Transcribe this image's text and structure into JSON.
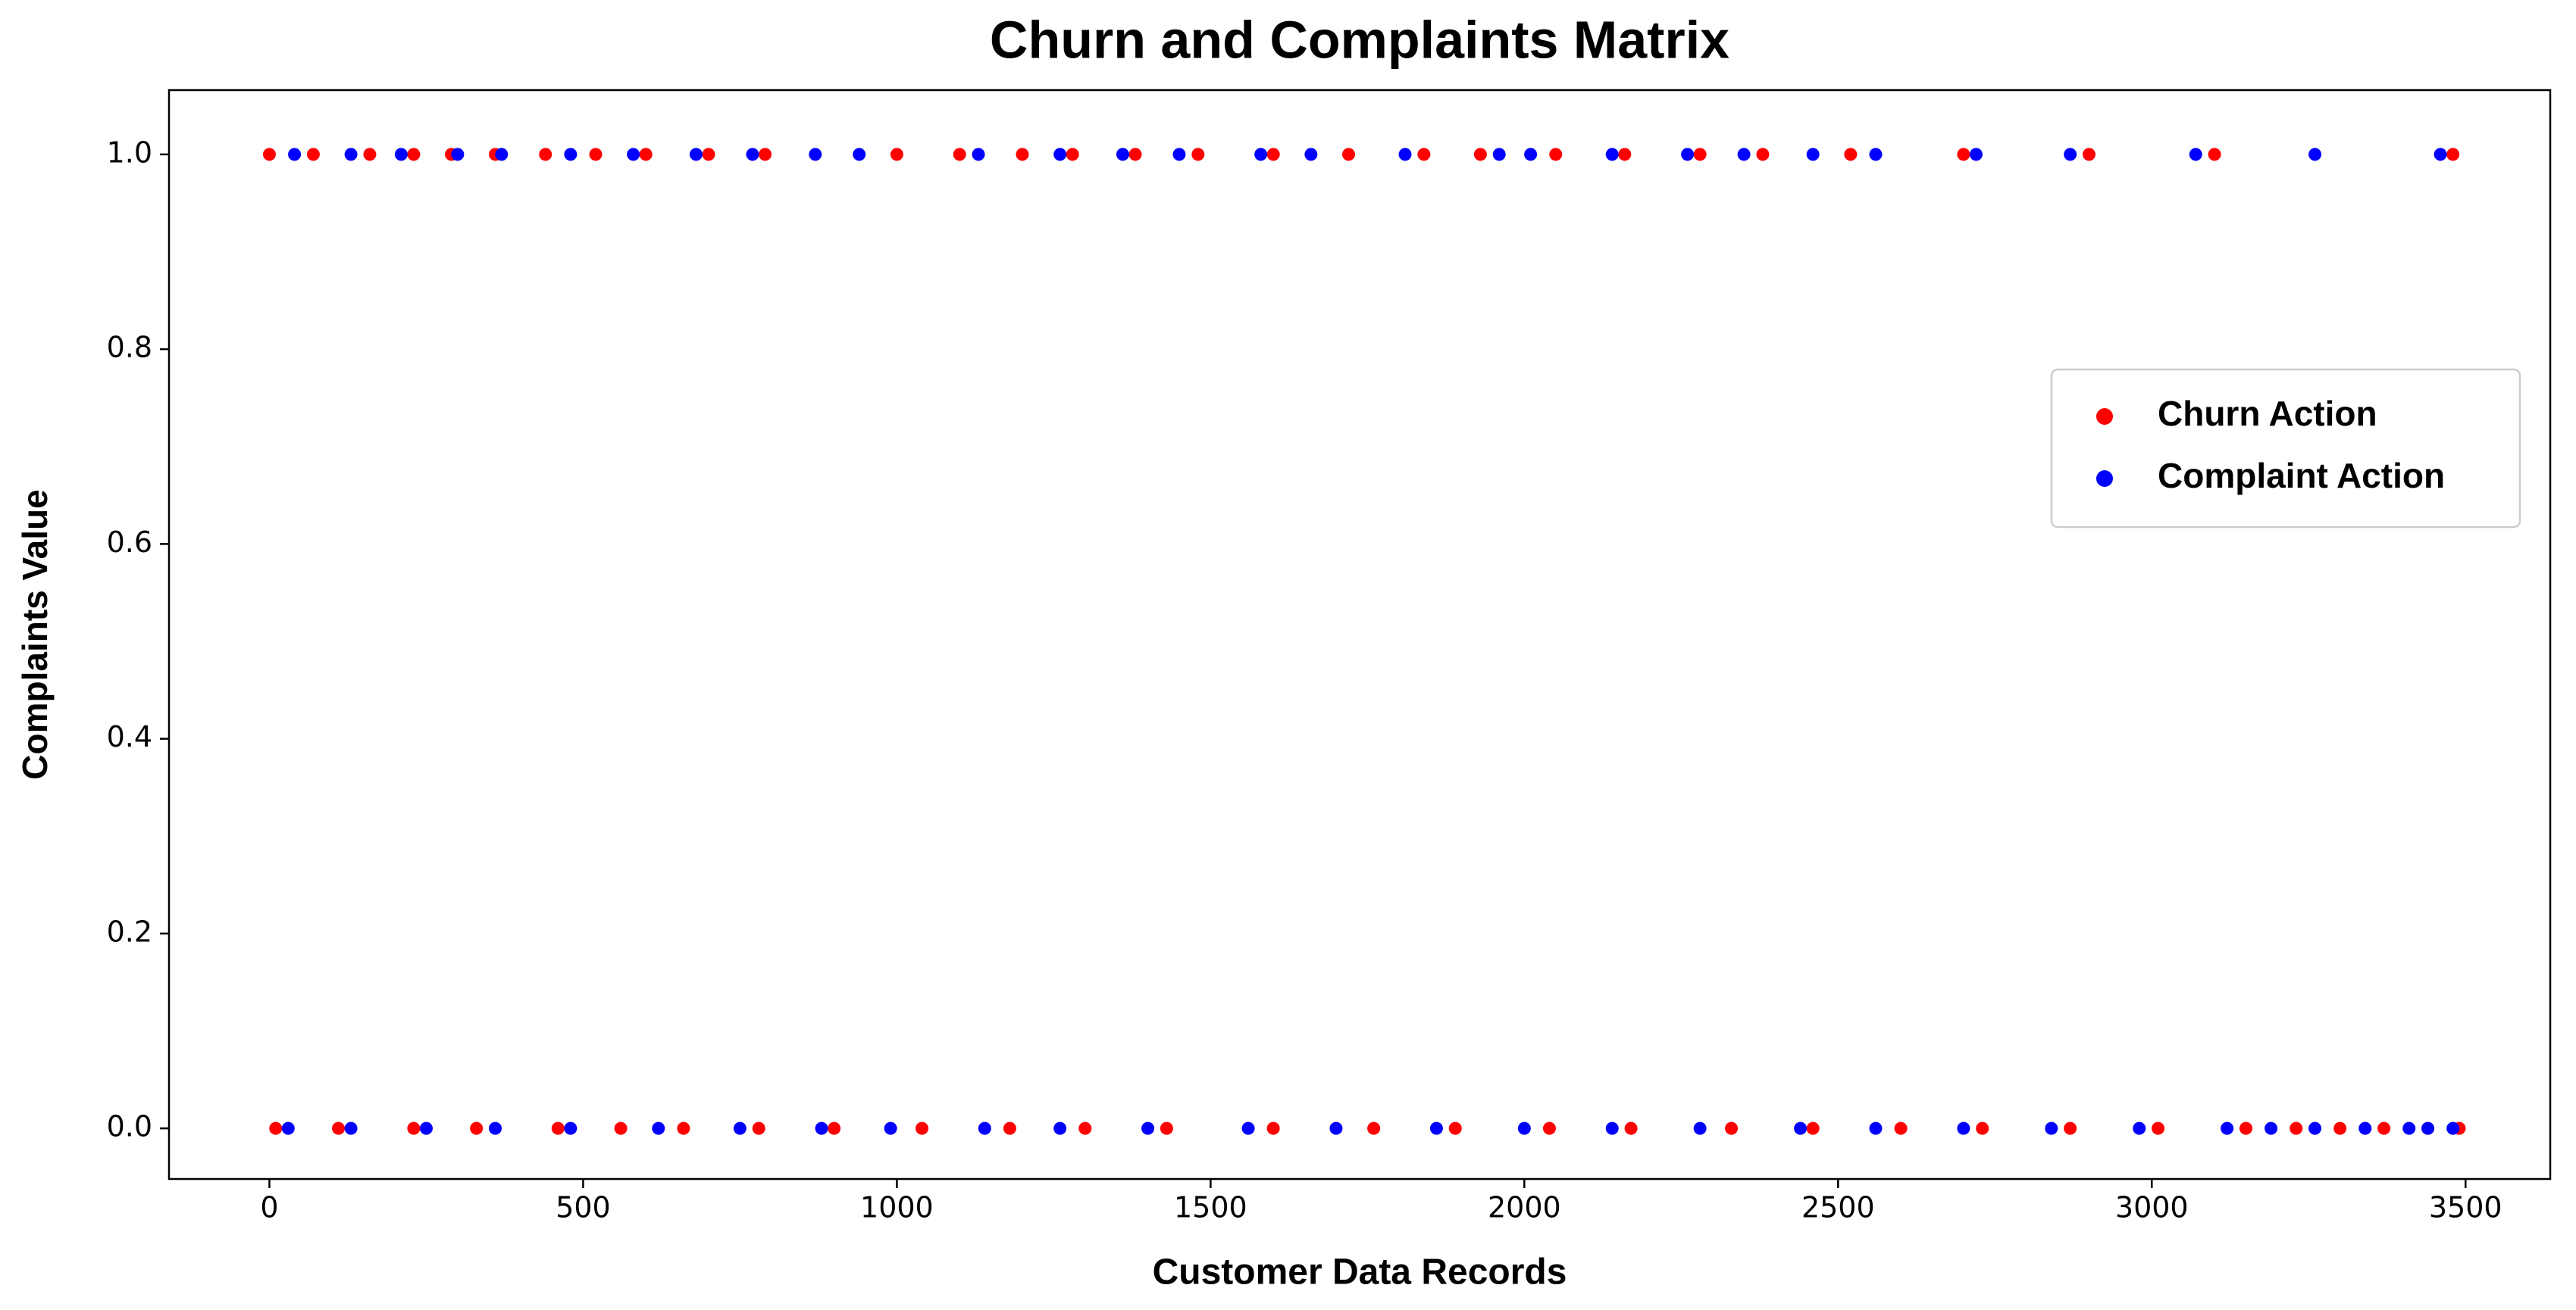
{
  "chart_data": {
    "type": "scatter",
    "title": "Churn and Complaints Matrix",
    "x_label": "Customer Data Records",
    "y_label": "Complaints Value",
    "xlim": [
      -160,
      3635
    ],
    "ylim": [
      -0.052,
      1.066
    ],
    "xticks": [
      0,
      500,
      1000,
      1500,
      2000,
      2500,
      3000,
      3500
    ],
    "yticks": [
      {
        "value": 0,
        "label": "0.0"
      },
      {
        "value": 0.2,
        "label": "0.2"
      },
      {
        "value": 0.4,
        "label": "0.4"
      },
      {
        "value": 0.6,
        "label": "0.6"
      },
      {
        "value": 0.8,
        "label": "0.8"
      },
      {
        "value": 1,
        "label": "1.0"
      }
    ],
    "grid": false,
    "legend": "center right",
    "series": [
      {
        "name": "Churn Action",
        "color": "#ff0000",
        "x": [
          0,
          70,
          160,
          230,
          290,
          360,
          440,
          520,
          600,
          700,
          790,
          1000,
          1100,
          1200,
          1280,
          1380,
          1480,
          1600,
          1720,
          1840,
          1930,
          2050,
          2160,
          2280,
          2380,
          2520,
          2700,
          2900,
          3100,
          3480,
          10,
          110,
          230,
          330,
          460,
          560,
          660,
          780,
          900,
          1040,
          1180,
          1300,
          1430,
          1600,
          1760,
          1890,
          2040,
          2170,
          2330,
          2460,
          2600,
          2730,
          2870,
          3010,
          3150,
          3230,
          3300,
          3370,
          3440,
          3490
        ],
        "y": [
          1,
          1,
          1,
          1,
          1,
          1,
          1,
          1,
          1,
          1,
          1,
          1,
          1,
          1,
          1,
          1,
          1,
          1,
          1,
          1,
          1,
          1,
          1,
          1,
          1,
          1,
          1,
          1,
          1,
          1,
          0,
          0,
          0,
          0,
          0,
          0,
          0,
          0,
          0,
          0,
          0,
          0,
          0,
          0,
          0,
          0,
          0,
          0,
          0,
          0,
          0,
          0,
          0,
          0,
          0,
          0,
          0,
          0,
          0,
          0
        ]
      },
      {
        "name": "Complaint Action",
        "color": "#0000ff",
        "x": [
          40,
          130,
          210,
          300,
          370,
          480,
          580,
          680,
          770,
          870,
          940,
          1130,
          1260,
          1360,
          1450,
          1580,
          1660,
          1810,
          1960,
          2010,
          2140,
          2260,
          2350,
          2460,
          2560,
          2720,
          2870,
          3070,
          3260,
          3460,
          30,
          130,
          250,
          360,
          480,
          620,
          750,
          880,
          990,
          1140,
          1260,
          1400,
          1560,
          1700,
          1860,
          2000,
          2140,
          2280,
          2440,
          2560,
          2700,
          2840,
          2980,
          3120,
          3190,
          3260,
          3340,
          3410,
          3440,
          3480
        ],
        "y": [
          1,
          1,
          1,
          1,
          1,
          1,
          1,
          1,
          1,
          1,
          1,
          1,
          1,
          1,
          1,
          1,
          1,
          1,
          1,
          1,
          1,
          1,
          1,
          1,
          1,
          1,
          1,
          1,
          1,
          1,
          0,
          0,
          0,
          0,
          0,
          0,
          0,
          0,
          0,
          0,
          0,
          0,
          0,
          0,
          0,
          0,
          0,
          0,
          0,
          0,
          0,
          0,
          0,
          0,
          0,
          0,
          0,
          0,
          0,
          0
        ]
      }
    ]
  }
}
